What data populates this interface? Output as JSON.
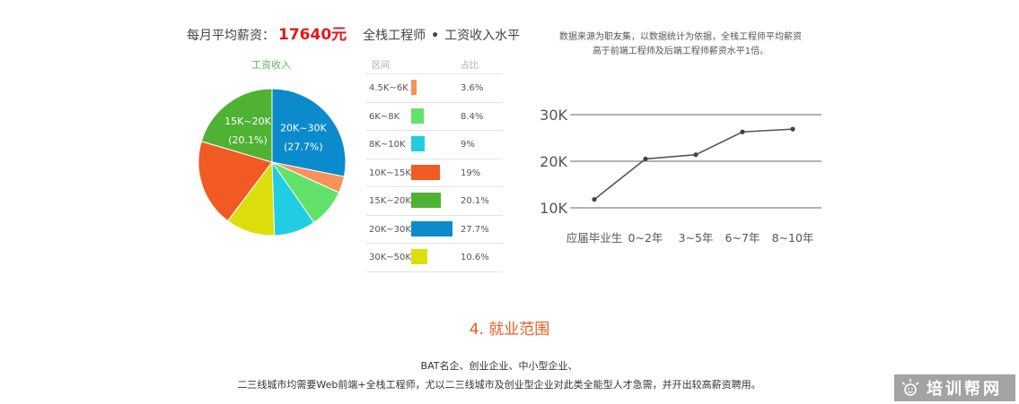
{
  "headline": {
    "prefix": "每月平均薪资：",
    "amount": "17640元",
    "role": "全栈工程师",
    "dot": "•",
    "suffix": "工资收入水平"
  },
  "note": {
    "line1": "数据来源为职友集，以数据统计为依据，全栈工程师平均薪资",
    "line2": "高于前端工程师及后端工程师薪资水平1倍。"
  },
  "section": {
    "title": "4. 就业范围",
    "line1": "BAT名企、创业企业、中小型企业、",
    "line2": "二三线城市均需要Web前端+全栈工程师，尤以二三线城市及创业型企业对此类全能型人才急需，并开出较高薪资聘用。"
  },
  "watermark": {
    "text": "培训帮网",
    "icon": "sun-face-icon"
  },
  "chart_data": [
    {
      "type": "pie",
      "title": "工资收入",
      "table_headers": [
        "区间",
        "占比"
      ],
      "categories": [
        "4.5K~6K",
        "6K~8K",
        "8K~10K",
        "10K~15K",
        "15K~20K",
        "20K~30K",
        "30K~50K"
      ],
      "values": [
        3.6,
        8.4,
        9,
        19,
        20.1,
        27.7,
        10.6
      ],
      "value_labels": [
        "3.6%",
        "8.4%",
        "9%",
        "19%",
        "20.1%",
        "27.7%",
        "10.6%"
      ],
      "colors": [
        "#f5935a",
        "#63e26b",
        "#21cde3",
        "#f15a22",
        "#4fb232",
        "#0b8bcc",
        "#dbde0b"
      ],
      "slice_labels": [
        {
          "category": "15K~20K",
          "name": "15K~20K",
          "pct": "(20.1%)"
        },
        {
          "category": "20K~30K",
          "name": "20K~30K",
          "pct": "(27.7%)"
        }
      ]
    },
    {
      "type": "line",
      "categories": [
        "应届毕业生",
        "0~2年",
        "3~5年",
        "6~7年",
        "8~10年"
      ],
      "values": [
        11.8,
        20.5,
        21.4,
        26.3,
        26.9
      ],
      "y_ticks": [
        10,
        20,
        30
      ],
      "y_tick_labels": [
        "10K",
        "20K",
        "30K"
      ],
      "ylim": [
        10,
        30
      ],
      "grid": true
    }
  ]
}
